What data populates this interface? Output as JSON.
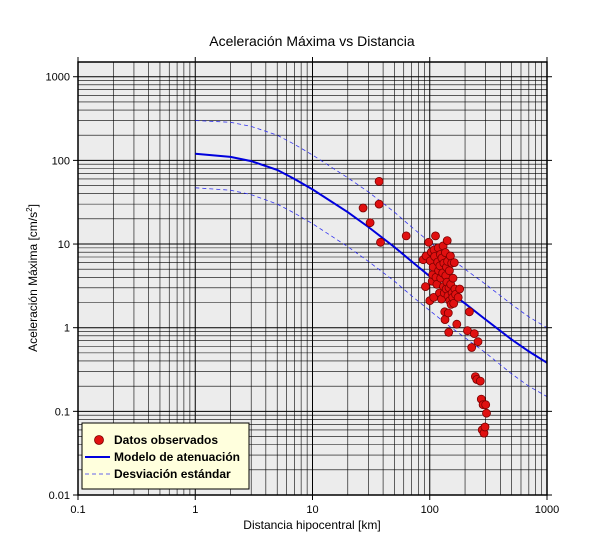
{
  "chart_data": {
    "type": "scatter",
    "title": "Aceleración Máxima vs Distancia",
    "xlabel": "Distancia hipocentral [km]",
    "ylabel_main": "Aceleración Máxima [cm/s",
    "ylabel_sup": "2",
    "ylabel_end": "]",
    "x_scale": "log",
    "y_scale": "log",
    "xlim": [
      0.1,
      1000
    ],
    "ylim": [
      0.01,
      1500
    ],
    "x_ticks": [
      {
        "value": 0.1,
        "label": "0.1"
      },
      {
        "value": 1,
        "label": "1"
      },
      {
        "value": 10,
        "label": "10"
      },
      {
        "value": 100,
        "label": "100"
      },
      {
        "value": 1000,
        "label": "1000"
      }
    ],
    "y_ticks": [
      {
        "value": 0.01,
        "label": "0.01"
      },
      {
        "value": 0.1,
        "label": "0.1"
      },
      {
        "value": 1,
        "label": "1"
      },
      {
        "value": 10,
        "label": "10"
      },
      {
        "value": 100,
        "label": "100"
      },
      {
        "value": 1000,
        "label": "1000"
      }
    ],
    "grid": true,
    "legend_position": "bottom-left",
    "colors": {
      "background": "#ececec",
      "grid": "#000000",
      "points_fill": "#e01010",
      "points_stroke": "#7a0000",
      "model": "#0000dd",
      "std": "#3333ee",
      "legend_bg": "#ffffdd"
    },
    "series": [
      {
        "name": "Datos observados",
        "kind": "points",
        "points": [
          [
            27,
            27
          ],
          [
            31,
            18
          ],
          [
            37,
            56
          ],
          [
            37,
            30
          ],
          [
            38,
            10.5
          ],
          [
            63,
            12.5
          ],
          [
            88,
            6.5
          ],
          [
            92,
            3.1
          ],
          [
            93,
            7.2
          ],
          [
            98,
            10.5
          ],
          [
            100,
            2.1
          ],
          [
            101,
            6.3
          ],
          [
            103,
            8.0
          ],
          [
            105,
            3.6
          ],
          [
            106,
            4.3
          ],
          [
            107,
            5.3
          ],
          [
            108,
            2.3
          ],
          [
            109,
            8.5
          ],
          [
            110,
            7.1
          ],
          [
            112,
            12.5
          ],
          [
            113,
            4.0
          ],
          [
            115,
            3.3
          ],
          [
            117,
            6.1
          ],
          [
            118,
            9.0
          ],
          [
            119,
            4.8
          ],
          [
            121,
            2.6
          ],
          [
            122,
            5.5
          ],
          [
            123,
            7.5
          ],
          [
            124,
            3.9
          ],
          [
            126,
            2.2
          ],
          [
            127,
            6.8
          ],
          [
            129,
            4.5
          ],
          [
            130,
            9.5
          ],
          [
            131,
            3.1
          ],
          [
            132,
            5.9
          ],
          [
            133,
            2.6
          ],
          [
            134,
            1.55
          ],
          [
            135,
            1.25
          ],
          [
            136,
            7.9
          ],
          [
            137,
            4.2
          ],
          [
            138,
            2.9
          ],
          [
            139,
            5.3
          ],
          [
            140,
            3.5
          ],
          [
            141,
            11.0
          ],
          [
            142,
            6.2
          ],
          [
            143,
            2.4
          ],
          [
            144,
            1.5
          ],
          [
            145,
            0.88
          ],
          [
            146,
            3.0
          ],
          [
            147,
            4.8
          ],
          [
            148,
            2.1
          ],
          [
            150,
            7.2
          ],
          [
            151,
            3.3
          ],
          [
            152,
            1.9
          ],
          [
            154,
            5.9
          ],
          [
            155,
            2.6
          ],
          [
            157,
            2.3
          ],
          [
            158,
            3.9
          ],
          [
            160,
            1.95
          ],
          [
            162,
            6.0
          ],
          [
            164,
            2.9
          ],
          [
            166,
            2.5
          ],
          [
            170,
            1.1
          ],
          [
            175,
            2.3
          ],
          [
            180,
            2.9
          ],
          [
            210,
            0.92
          ],
          [
            218,
            1.55
          ],
          [
            228,
            0.58
          ],
          [
            240,
            0.85
          ],
          [
            245,
            0.26
          ],
          [
            252,
            0.24
          ],
          [
            258,
            0.68
          ],
          [
            270,
            0.23
          ],
          [
            275,
            0.14
          ],
          [
            280,
            0.06
          ],
          [
            285,
            0.12
          ],
          [
            290,
            0.055
          ],
          [
            296,
            0.065
          ],
          [
            300,
            0.12
          ],
          [
            305,
            0.095
          ]
        ]
      },
      {
        "name": "Modelo de atenuación",
        "kind": "line",
        "points": [
          [
            1,
            120
          ],
          [
            2,
            110
          ],
          [
            3,
            98
          ],
          [
            5,
            77
          ],
          [
            7,
            60
          ],
          [
            10,
            45
          ],
          [
            20,
            24
          ],
          [
            30,
            16
          ],
          [
            50,
            9.2
          ],
          [
            70,
            6.2
          ],
          [
            100,
            4.1
          ],
          [
            150,
            2.6
          ],
          [
            200,
            1.95
          ],
          [
            300,
            1.25
          ],
          [
            500,
            0.72
          ],
          [
            700,
            0.52
          ],
          [
            1000,
            0.38
          ]
        ]
      },
      {
        "name": "Desviación estándar",
        "kind": "dashed",
        "curves": [
          [
            [
              1,
              300
            ],
            [
              2,
              285
            ],
            [
              3,
              255
            ],
            [
              5,
              200
            ],
            [
              7,
              156
            ],
            [
              10,
              116
            ],
            [
              20,
              62
            ],
            [
              30,
              42
            ],
            [
              50,
              24
            ],
            [
              70,
              16
            ],
            [
              100,
              10.5
            ],
            [
              150,
              6.8
            ],
            [
              200,
              5.0
            ],
            [
              300,
              3.3
            ],
            [
              500,
              1.9
            ],
            [
              700,
              1.35
            ],
            [
              1000,
              1.0
            ]
          ],
          [
            [
              1,
              47
            ],
            [
              2,
              44
            ],
            [
              3,
              39
            ],
            [
              5,
              30
            ],
            [
              7,
              23.5
            ],
            [
              10,
              17.5
            ],
            [
              20,
              9.3
            ],
            [
              30,
              6.2
            ],
            [
              50,
              3.6
            ],
            [
              70,
              2.4
            ],
            [
              100,
              1.6
            ],
            [
              150,
              1.02
            ],
            [
              200,
              0.76
            ],
            [
              300,
              0.5
            ],
            [
              500,
              0.28
            ],
            [
              700,
              0.2
            ],
            [
              1000,
              0.15
            ]
          ]
        ]
      }
    ]
  }
}
